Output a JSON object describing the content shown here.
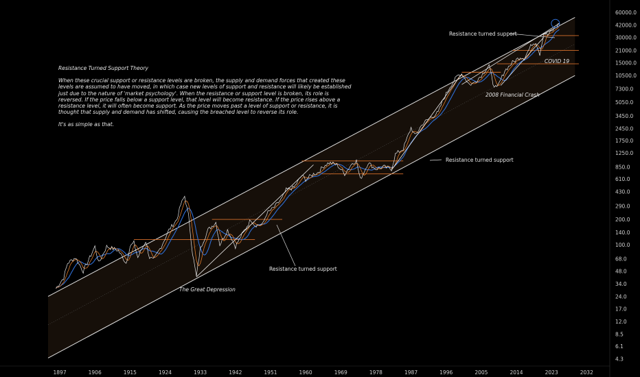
{
  "note": {
    "title": "Resistance Turned Support Theory",
    "body": "When these crucial support or resistance levels are broken, the supply and demand forces that created these levels are assumed to have moved, in which case new levels of support and resistance will likely be established just due to the nature of 'market psychology'. When the resistance or support level is broken, its role is reversed. If the price falls below a support level, that level will become resistance. If the price rises above a resistance level, it will often become support. As the price moves past a level of support or resistance, it is thought that supply and demand has shifted, causing the breached level to reverse its role.",
    "closing": "It's as simple as that."
  },
  "annotations": {
    "rts_1": "Resistance turned support",
    "rts_2": "Resistance turned support",
    "rts_3": "Resistance turned support",
    "great_depression": "The Great Depression",
    "financial_crash": "2008 Financial Crash",
    "covid": "COVID 19"
  },
  "colors": {
    "background": "#000000",
    "price": "#e8e8e8",
    "ma_blue": "#2f6fd6",
    "ma_orange": "#e07b2a",
    "level": "#d9702b",
    "channel": "#e0e0e0",
    "channel_fill": "#1a120b",
    "axis_text": "#cfcfcf"
  },
  "chart_data": {
    "type": "line",
    "y_scale": "log",
    "xlim": [
      1894,
      2033
    ],
    "ylim": [
      3.6,
      75000
    ],
    "x_ticks": [
      "1897",
      "1906",
      "1915",
      "1924",
      "1933",
      "1942",
      "1951",
      "1960",
      "1969",
      "1978",
      "1987",
      "1996",
      "2005",
      "2014",
      "2023",
      "2032"
    ],
    "y_ticks": [
      "60000.0",
      "42000.0",
      "30000.0",
      "21000.0",
      "15000.0",
      "10500.0",
      "7300.0",
      "5050.0",
      "3450.0",
      "2450.0",
      "1750.0",
      "1250.0",
      "850.0",
      "610.0",
      "430.0",
      "290.0",
      "200.0",
      "140.0",
      "100.0",
      "68.0",
      "48.0",
      "34.0",
      "24.0",
      "17.0",
      "12.0",
      "8.5",
      "6.1",
      "4.3"
    ],
    "series": [
      {
        "x": [
          1896,
          1898,
          1899,
          1901,
          1903,
          1905,
          1906,
          1907,
          1909,
          1912,
          1914,
          1915,
          1916,
          1917,
          1919,
          1920,
          1921,
          1923,
          1925,
          1927,
          1928,
          1929,
          1930,
          1931,
          1932,
          1933,
          1935,
          1937,
          1938,
          1940,
          1942,
          1944,
          1946,
          1947,
          1949,
          1950,
          1952,
          1954,
          1955,
          1957,
          1959,
          1960,
          1962,
          1963,
          1965,
          1966,
          1968,
          1970,
          1972,
          1973,
          1974,
          1976,
          1978,
          1980,
          1982,
          1983,
          1985,
          1987,
          1988,
          1990,
          1992,
          1994,
          1995,
          1997,
          1999,
          2000,
          2002,
          2003,
          2005,
          2007,
          2008,
          2009,
          2011,
          2013,
          2015,
          2016,
          2018,
          2019,
          2020,
          2021,
          2022,
          2024,
          2025
        ],
        "y": [
          30,
          40,
          60,
          70,
          48,
          75,
          95,
          60,
          95,
          85,
          60,
          95,
          105,
          70,
          110,
          70,
          65,
          95,
          150,
          200,
          300,
          380,
          220,
          80,
          41,
          90,
          150,
          185,
          100,
          150,
          95,
          140,
          200,
          170,
          175,
          235,
          280,
          360,
          450,
          480,
          670,
          600,
          700,
          720,
          900,
          950,
          900,
          700,
          950,
          1000,
          600,
          950,
          800,
          850,
          800,
          1200,
          1400,
          2500,
          2000,
          2800,
          3300,
          3800,
          5100,
          7800,
          10500,
          11000,
          8200,
          8500,
          10500,
          13900,
          8500,
          7300,
          12000,
          15000,
          17500,
          17000,
          25000,
          26500,
          19000,
          34000,
          32000,
          39000,
          44000
        ]
      }
    ],
    "support_resistance_levels": [
      {
        "x": [
          1916,
          1947
        ],
        "y": 115
      },
      {
        "x": [
          1936,
          1954
        ],
        "y": 200
      },
      {
        "x": [
          1959,
          1985
        ],
        "y": 1000
      },
      {
        "x": [
          1964,
          1985
        ],
        "y": 700
      },
      {
        "x": [
          2000,
          2010
        ],
        "y": 11500
      },
      {
        "x": [
          2009,
          2030
        ],
        "y": 14500
      },
      {
        "x": [
          2013,
          2030
        ],
        "y": 21000
      },
      {
        "x": [
          2021,
          2030
        ],
        "y": 31500
      }
    ],
    "channel": {
      "upper": [
        [
          1894,
          24
        ],
        [
          2029,
          52000
        ]
      ],
      "lower": [
        [
          1894,
          4.4
        ],
        [
          2029,
          10500
        ]
      ],
      "mid": [
        [
          1894,
          11
        ],
        [
          2029,
          25000
        ]
      ]
    }
  }
}
